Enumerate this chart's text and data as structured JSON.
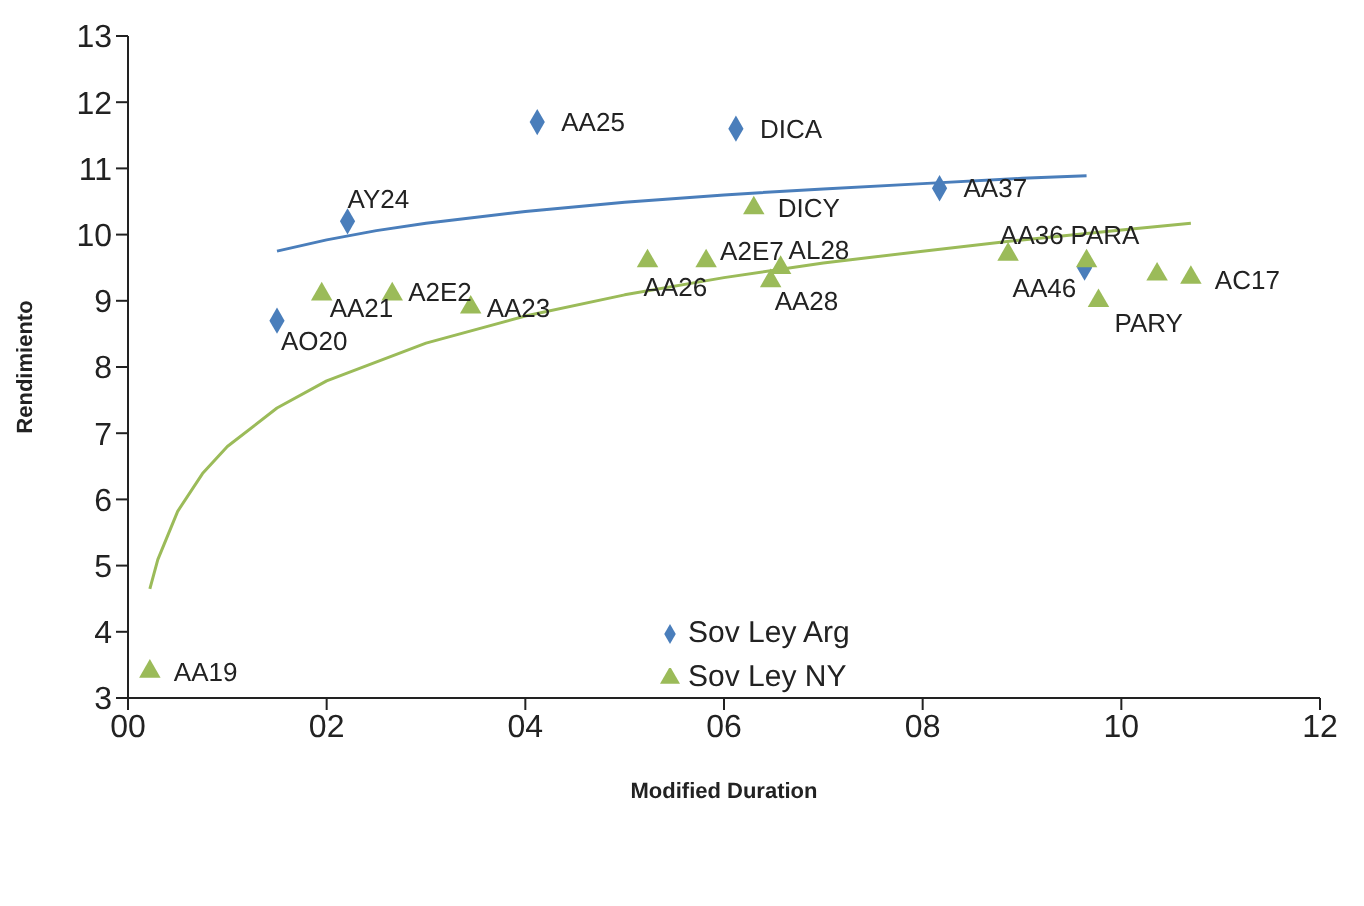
{
  "chart_data": {
    "type": "scatter",
    "xlabel": "Modified Duration",
    "ylabel": "Rendimiento",
    "xlim": [
      0,
      12
    ],
    "xticks": [
      {
        "value": 0,
        "label": "00"
      },
      {
        "value": 2,
        "label": "02"
      },
      {
        "value": 4,
        "label": "04"
      },
      {
        "value": 6,
        "label": "06"
      },
      {
        "value": 8,
        "label": "08"
      },
      10,
      12
    ],
    "ylim": [
      3,
      13
    ],
    "yticks": [
      3,
      4,
      5,
      6,
      7,
      8,
      9,
      10,
      11,
      12,
      13
    ],
    "grid": false,
    "legend": "bottom",
    "series": [
      {
        "name": "Sov Ley Arg",
        "color": "#4a7ebb",
        "marker": "diamond",
        "x": [
          1.5,
          2.21,
          4.12,
          6.12,
          8.17,
          9.63
        ],
        "values": [
          8.7,
          10.2,
          11.7,
          11.6,
          10.7,
          9.5
        ]
      },
      {
        "name": "Sov Ley NY",
        "color": "#9bbb59",
        "marker": "triangle",
        "x": [
          0.22,
          1.95,
          2.66,
          3.45,
          5.23,
          5.82,
          6.57,
          6.47,
          6.3,
          8.86,
          9.65,
          9.77,
          10.36,
          10.7
        ],
        "values": [
          3.4,
          9.1,
          9.1,
          8.9,
          9.6,
          9.6,
          9.5,
          9.3,
          10.4,
          9.7,
          9.6,
          9.0,
          9.4,
          9.35
        ]
      },
      {
        "type": "line",
        "color": "#4a7ebb",
        "marker": "none",
        "x": [
          1.5,
          2,
          2.5,
          3,
          4,
          5,
          6,
          7,
          8,
          9,
          9.65
        ],
        "values": [
          9.75,
          9.92,
          10.06,
          10.17,
          10.35,
          10.49,
          10.6,
          10.69,
          10.77,
          10.85,
          10.89
        ]
      },
      {
        "type": "line",
        "color": "#9bbb59",
        "marker": "none",
        "x": [
          0.22,
          0.3,
          0.5,
          0.75,
          1,
          1.5,
          2,
          3,
          4,
          5,
          6,
          7,
          8,
          9,
          10,
          10.7
        ],
        "values": [
          4.65,
          5.09,
          5.82,
          6.39,
          6.8,
          7.38,
          7.79,
          8.36,
          8.77,
          9.09,
          9.35,
          9.57,
          9.75,
          9.92,
          10.07,
          10.17
        ]
      }
    ],
    "annotations": [
      {
        "text": "AO20",
        "x": 1.5,
        "y": 8.7
      },
      {
        "text": "AY24",
        "x": 2.21,
        "y": 10.2
      },
      {
        "text": "AA25",
        "x": 4.12,
        "y": 11.7
      },
      {
        "text": "DICA",
        "x": 6.12,
        "y": 11.6
      },
      {
        "text": "AA37",
        "x": 8.17,
        "y": 10.7
      },
      {
        "text": "AA46",
        "x": 9.63,
        "y": 9.5
      },
      {
        "text": "AA19",
        "x": 0.22,
        "y": 3.4
      },
      {
        "text": "AA21",
        "x": 1.95,
        "y": 9.1
      },
      {
        "text": "A2E2",
        "x": 2.66,
        "y": 9.1
      },
      {
        "text": "AA23",
        "x": 3.45,
        "y": 8.9
      },
      {
        "text": "AA26",
        "x": 5.23,
        "y": 9.6
      },
      {
        "text": "A2E7",
        "x": 5.82,
        "y": 9.6
      },
      {
        "text": "AL28",
        "x": 6.57,
        "y": 9.5
      },
      {
        "text": "AA28",
        "x": 6.47,
        "y": 9.3
      },
      {
        "text": "DICY",
        "x": 6.3,
        "y": 10.4
      },
      {
        "text": "AA36",
        "x": 8.86,
        "y": 9.7
      },
      {
        "text": "PARA",
        "x": 9.65,
        "y": 9.6
      },
      {
        "text": "PARY",
        "x": 9.77,
        "y": 9.0
      },
      {
        "text": "AC17",
        "x": 10.7,
        "y": 9.35
      }
    ]
  }
}
